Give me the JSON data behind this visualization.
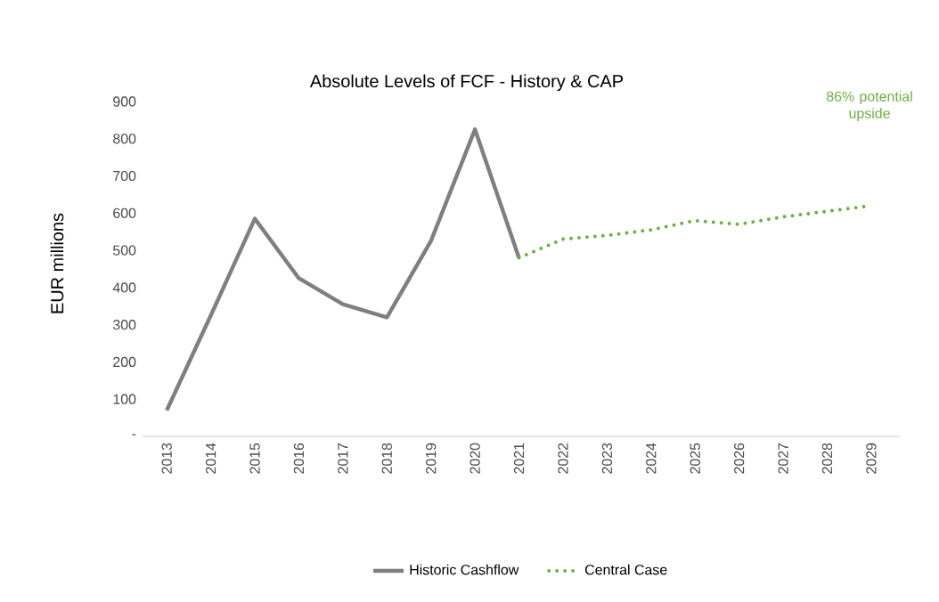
{
  "chart_data": {
    "type": "line",
    "title": "Absolute Levels of FCF - History & CAP",
    "ylabel": "EUR millions",
    "categories": [
      "2013",
      "2014",
      "2015",
      "2016",
      "2017",
      "2018",
      "2019",
      "2020",
      "2021",
      "2022",
      "2023",
      "2024",
      "2025",
      "2026",
      "2027",
      "2028",
      "2029"
    ],
    "series": [
      {
        "name": "Historic Cashflow",
        "color": "#7f7f7f",
        "line_style": "solid",
        "values": [
          70,
          325,
          585,
          425,
          355,
          320,
          525,
          825,
          480,
          null,
          null,
          null,
          null,
          null,
          null,
          null,
          null
        ]
      },
      {
        "name": "Central Case",
        "color": "#70ad47",
        "line_style": "dotted",
        "values": [
          null,
          null,
          null,
          null,
          null,
          null,
          null,
          null,
          480,
          530,
          540,
          555,
          580,
          570,
          590,
          605,
          620
        ]
      }
    ],
    "ylim": [
      0,
      900
    ],
    "yticks": [
      {
        "value": 0,
        "label": "-"
      },
      100,
      200,
      300,
      400,
      500,
      600,
      700,
      800,
      900
    ],
    "annotations": [
      "86% potential upside"
    ],
    "grid": false,
    "legend": "bottom"
  }
}
